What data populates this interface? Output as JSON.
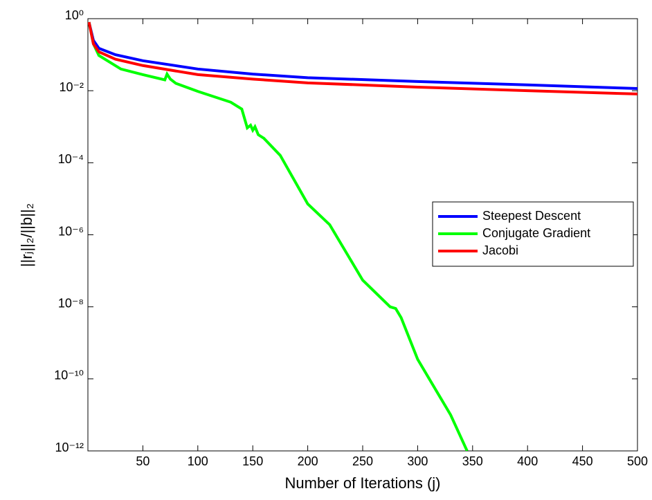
{
  "chart_data": {
    "type": "line",
    "xlabel": "Number of Iterations (j)",
    "ylabel": "||rⱼ||₂/||b||₂",
    "xlim": [
      0,
      500
    ],
    "xticks": [
      50,
      100,
      150,
      200,
      250,
      300,
      350,
      400,
      450,
      500
    ],
    "ylim": [
      1e-12,
      1
    ],
    "log_y": true,
    "yticks": [
      {
        "value": 1,
        "label": "10⁰"
      },
      {
        "value": 0.01,
        "label": "10⁻²"
      },
      {
        "value": 0.0001,
        "label": "10⁻⁴"
      },
      {
        "value": 1e-06,
        "label": "10⁻⁶"
      },
      {
        "value": 1e-08,
        "label": "10⁻⁸"
      },
      {
        "value": 1e-10,
        "label": "10⁻¹⁰"
      },
      {
        "value": 1e-12,
        "label": "10⁻¹²"
      }
    ],
    "legend": "right",
    "series": [
      {
        "name": "Steepest Descent",
        "color": "#0000ff",
        "x": [
          1,
          5,
          10,
          25,
          50,
          100,
          150,
          200,
          300,
          400,
          500
        ],
        "values": [
          0.8,
          0.25,
          0.15,
          0.1,
          0.068,
          0.04,
          0.029,
          0.023,
          0.018,
          0.0145,
          0.0115
        ]
      },
      {
        "name": "Conjugate Gradient",
        "color": "#00ff00",
        "x": [
          1,
          5,
          10,
          30,
          50,
          70,
          72,
          75,
          80,
          100,
          130,
          140,
          145,
          148,
          150,
          152,
          155,
          160,
          175,
          200,
          220,
          250,
          275,
          280,
          285,
          300,
          330,
          345
        ],
        "values": [
          0.8,
          0.2,
          0.095,
          0.04,
          0.028,
          0.02,
          0.029,
          0.021,
          0.016,
          0.0096,
          0.0048,
          0.0031,
          0.00093,
          0.0011,
          0.0008,
          0.001,
          0.0006,
          0.00048,
          0.00016,
          7.2e-06,
          1.9e-06,
          5.5e-08,
          1e-08,
          9e-09,
          5e-09,
          3.5e-10,
          1e-11,
          1e-12
        ]
      },
      {
        "name": "Jacobi",
        "color": "#ff0000",
        "x": [
          1,
          5,
          10,
          25,
          50,
          100,
          150,
          200,
          300,
          400,
          500
        ],
        "values": [
          0.8,
          0.2,
          0.12,
          0.075,
          0.05,
          0.028,
          0.021,
          0.0165,
          0.0126,
          0.01,
          0.0081
        ]
      }
    ]
  }
}
